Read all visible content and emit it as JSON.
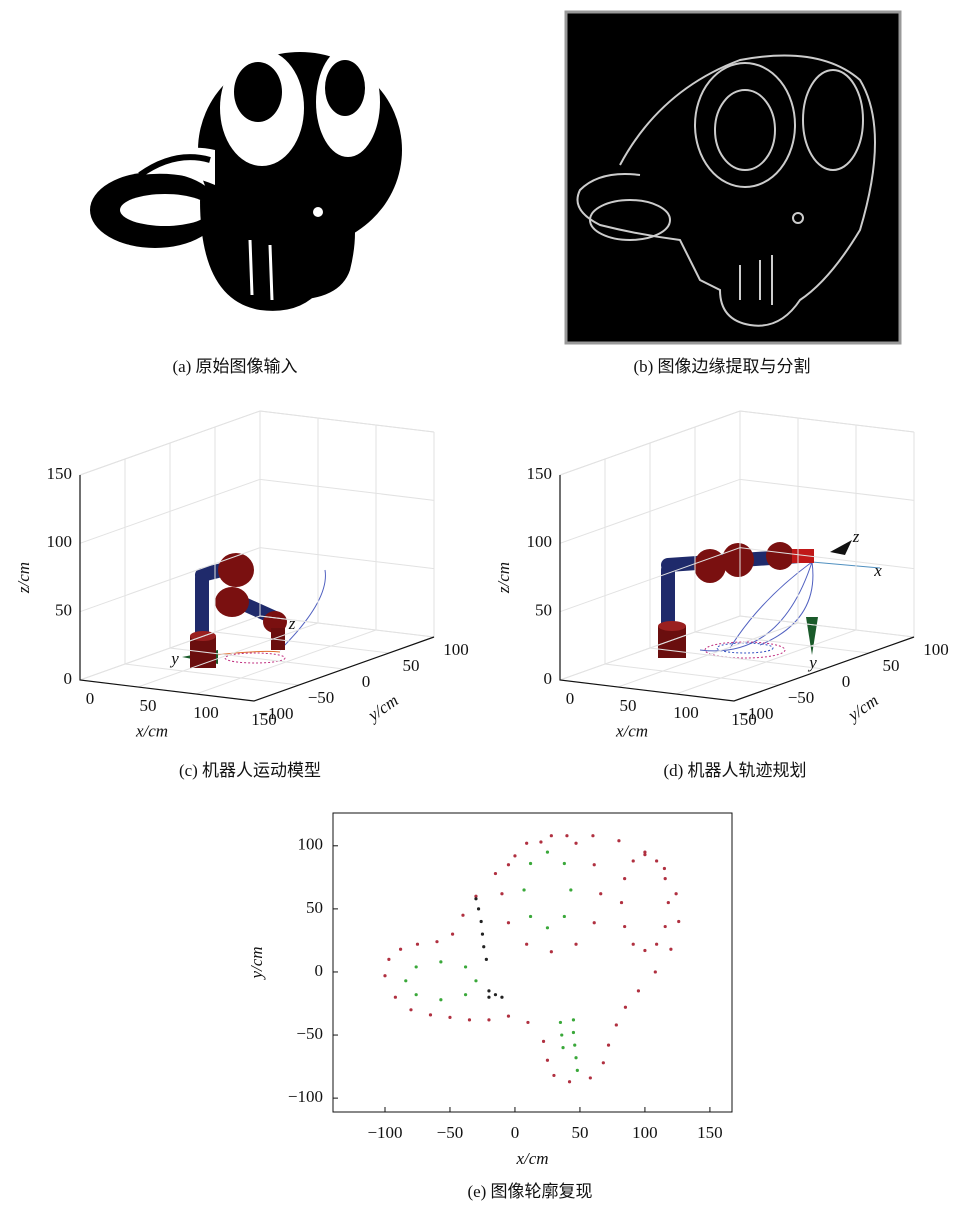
{
  "panels": [
    {
      "caption": "(a) 原始图像输入"
    },
    {
      "caption": "(b) 图像边缘提取与分割"
    }
  ],
  "chart_data": [
    {
      "type": "robot3d",
      "caption": "(c) 机器人运动模型",
      "xlabel": "x/cm",
      "ylabel": "y/cm",
      "zlabel": "z/cm",
      "xlim": [
        0,
        150
      ],
      "ylim": [
        -100,
        100
      ],
      "zlim": [
        0,
        150
      ],
      "xticks": [
        0,
        50,
        100,
        150
      ],
      "yticks": [
        {
          "value": -100,
          "label": "−100"
        },
        {
          "value": -50,
          "label": "−50"
        },
        0,
        50,
        100
      ],
      "zticks": [
        0,
        50,
        100,
        150
      ],
      "annotations": [
        "y",
        "z"
      ]
    },
    {
      "type": "robot3d",
      "caption": "(d) 机器人轨迹规划",
      "xlabel": "x/cm",
      "ylabel": "y/cm",
      "zlabel": "z/cm",
      "xlim": [
        0,
        150
      ],
      "ylim": [
        -100,
        100
      ],
      "zlim": [
        0,
        150
      ],
      "xticks": [
        0,
        50,
        100,
        150
      ],
      "yticks": [
        {
          "value": -100,
          "label": "−100"
        },
        {
          "value": -50,
          "label": "−50"
        },
        0,
        50,
        100
      ],
      "zticks": [
        0,
        50,
        100,
        150
      ],
      "annotations": [
        "z",
        "x",
        "y"
      ]
    },
    {
      "type": "scatter",
      "caption": "(e) 图像轮廓复现",
      "xlabel": "x/cm",
      "ylabel": "y/cm",
      "xlim": [
        -140,
        167
      ],
      "ylim": [
        -111,
        126
      ],
      "xticks": [
        {
          "value": -100,
          "label": "−100"
        },
        {
          "value": -50,
          "label": "−50"
        },
        0,
        50,
        100,
        150
      ],
      "yticks": [
        {
          "value": -100,
          "label": "−100"
        },
        {
          "value": -50,
          "label": "−50"
        },
        0,
        50,
        100
      ],
      "series": [
        {
          "color": "#b03040",
          "x": [
            -100,
            -97,
            -88,
            -75,
            -60,
            -48,
            -40,
            -30,
            -15,
            0,
            20,
            40,
            60,
            80,
            100,
            115,
            124,
            126,
            120,
            108,
            95,
            85,
            78,
            72,
            68,
            58,
            42,
            30,
            25,
            22,
            10,
            -5,
            -20,
            -35,
            -50,
            -65,
            -80,
            -92,
            118,
            115.6,
            109,
            100,
            91,
            84.4,
            82,
            84.4,
            91,
            100,
            109,
            115.6,
            66,
            61,
            47,
            28,
            9,
            -5,
            -10,
            -5,
            9,
            28,
            47,
            61
          ],
          "y": [
            -3,
            10,
            18,
            22,
            24,
            30,
            45,
            60,
            78,
            92,
            103,
            108,
            108,
            104,
            95,
            82,
            62,
            40,
            18,
            0,
            -15,
            -28,
            -42,
            -58,
            -72,
            -84,
            -87,
            -82,
            -70,
            -55,
            -40,
            -35,
            -38,
            -38,
            -36,
            -34,
            -30,
            -20,
            55,
            74,
            88,
            93,
            88,
            74,
            55,
            36,
            22,
            17,
            22,
            36,
            62,
            85,
            102,
            108,
            102,
            85,
            62,
            39,
            22,
            16,
            22,
            39
          ]
        },
        {
          "color": "#3aa83a",
          "x": [
            43,
            38,
            25,
            12,
            7,
            12,
            25,
            38,
            -30,
            -38,
            -57,
            -76,
            -84,
            -76,
            -57,
            -38,
            35,
            36,
            37,
            45,
            45,
            46,
            47,
            48
          ],
          "y": [
            65,
            86,
            95,
            86,
            65,
            44,
            35,
            44,
            -7,
            4,
            8,
            4,
            -7,
            -18,
            -22,
            -18,
            -40,
            -50,
            -60,
            -38,
            -48,
            -58,
            -68,
            -78
          ]
        },
        {
          "color": "#222222",
          "x": [
            -30,
            -28,
            -26,
            -25,
            -24,
            -22,
            -20,
            -15,
            -20,
            -10
          ],
          "y": [
            58,
            50,
            40,
            30,
            20,
            10,
            -15,
            -18,
            -20,
            -20
          ]
        }
      ]
    }
  ]
}
